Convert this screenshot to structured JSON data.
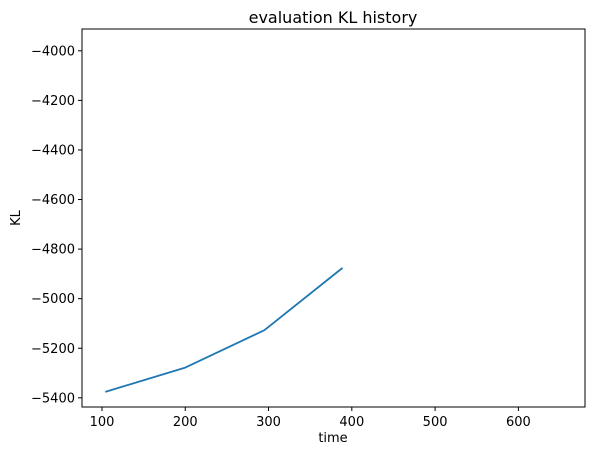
{
  "chart_data": {
    "type": "line",
    "title": "evaluation KL history",
    "xlabel": "time",
    "ylabel": "KL",
    "xlim": [
      76,
      680
    ],
    "ylim": [
      -5437,
      -3912
    ],
    "x_ticks": [
      100,
      200,
      300,
      400,
      500,
      600
    ],
    "x_tick_labels": [
      "100",
      "200",
      "300",
      "400",
      "500",
      "600"
    ],
    "y_ticks": [
      -5400,
      -5200,
      -5000,
      -4800,
      -4600,
      -4400,
      -4200,
      -4000
    ],
    "y_tick_labels": [
      "−5400",
      "−5200",
      "−5000",
      "−4800",
      "−4600",
      "−4400",
      "−4200",
      "−4000"
    ],
    "grid": false,
    "legend": "none",
    "series": [
      {
        "color": "#1f77b4",
        "x": [
          105,
          200,
          295,
          388
        ],
        "y": [
          -5375,
          -5278,
          -5127,
          -4878
        ]
      }
    ]
  }
}
